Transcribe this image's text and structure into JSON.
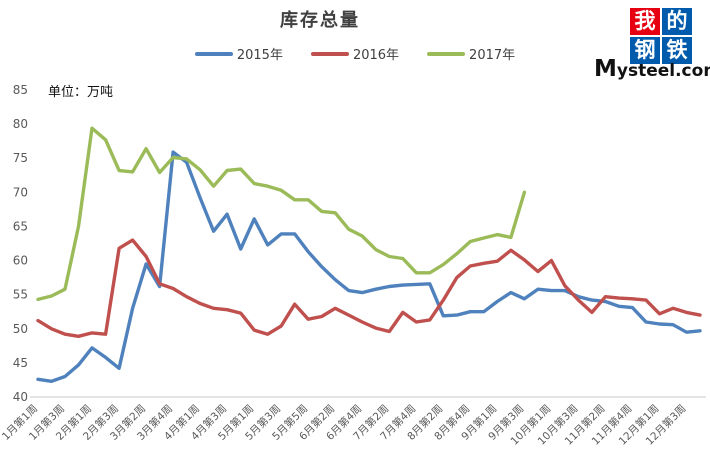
{
  "page": {
    "title": "库存总量",
    "unit_label": "单位：万吨"
  },
  "logo": {
    "chars": [
      "我",
      "的",
      "钢",
      "铁"
    ],
    "cell_colors": [
      "#e60012",
      "#005bac",
      "#005bac",
      "#005bac"
    ],
    "wordmark_big": "M",
    "wordmark_rest": "ysteel.com"
  },
  "chart_data": {
    "type": "line",
    "title": "库存总量",
    "unit": "万吨",
    "ylabel": "",
    "xlabel": "",
    "ylim": [
      40,
      85
    ],
    "y_tick_step": 5,
    "grid": false,
    "legend_position": "top",
    "n_points": 50,
    "x_tick_interval": 2,
    "x_tick_labels": [
      "1月第1周",
      "1月第3周",
      "2月第1周",
      "2月第3周",
      "3月第2周",
      "3月第4周",
      "4月第1周",
      "4月第3周",
      "5月第1周",
      "5月第3周",
      "5月第5周",
      "6月第2周",
      "6月第4周",
      "7月第2周",
      "7月第4周",
      "8月第2周",
      "8月第4周",
      "9月第1周",
      "9月第3周",
      "10月第1周",
      "10月第3周",
      "11月第2周",
      "11月第4周",
      "12月第1周",
      "12月第3周"
    ],
    "series": [
      {
        "name": "2015年",
        "color": "#4F81BD",
        "values": [
          42.6,
          42.3,
          43.0,
          44.7,
          47.2,
          45.8,
          44.2,
          53.0,
          59.5,
          56.2,
          75.9,
          74.4,
          69.2,
          64.3,
          66.8,
          61.7,
          66.1,
          62.3,
          63.9,
          63.9,
          61.3,
          59.1,
          57.2,
          55.6,
          55.3,
          55.8,
          56.2,
          56.4,
          56.5,
          56.6,
          51.9,
          52.0,
          52.5,
          52.5,
          54.0,
          55.3,
          54.4,
          55.8,
          55.6,
          55.6,
          54.7,
          54.2,
          54.0,
          53.3,
          53.1,
          51.0,
          50.7,
          50.6,
          49.5,
          49.7
        ]
      },
      {
        "name": "2016年",
        "color": "#C0504D",
        "values": [
          51.2,
          50.0,
          49.2,
          48.9,
          49.4,
          49.2,
          61.8,
          63.0,
          60.6,
          56.6,
          55.9,
          54.7,
          53.7,
          53.0,
          52.8,
          52.3,
          49.8,
          49.2,
          50.4,
          53.6,
          51.4,
          51.8,
          53.0,
          52.0,
          51.0,
          50.1,
          49.6,
          52.4,
          51.0,
          51.3,
          54.2,
          57.5,
          59.2,
          59.6,
          59.9,
          61.5,
          60.1,
          58.4,
          60.0,
          56.3,
          54.2,
          52.4,
          54.7,
          54.5,
          54.4,
          54.2,
          52.2,
          53.0,
          52.4,
          52.0
        ]
      },
      {
        "name": "2017年",
        "color": "#9BBB59",
        "values": [
          54.3,
          54.8,
          55.8,
          65.0,
          79.4,
          77.7,
          73.2,
          73.0,
          76.4,
          72.9,
          75.1,
          74.9,
          73.3,
          70.9,
          73.2,
          73.4,
          71.3,
          70.9,
          70.3,
          68.9,
          68.9,
          67.2,
          67.0,
          64.6,
          63.6,
          61.6,
          60.6,
          60.3,
          58.2,
          58.2,
          59.4,
          61.0,
          62.8,
          63.3,
          63.8,
          63.4,
          70.0
        ]
      }
    ]
  }
}
